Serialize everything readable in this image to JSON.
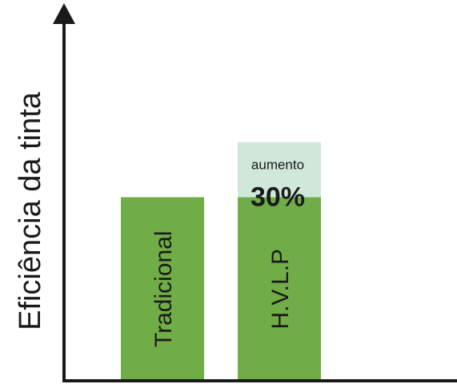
{
  "chart_data": {
    "type": "bar",
    "ylabel": "Eficiência da tinta",
    "xlabel": "",
    "categories": [
      "Tradicional",
      "H.V.L.P"
    ],
    "values": [
      100,
      100
    ],
    "increase": {
      "category": "H.V.L.P",
      "value": 30,
      "label_small": "aumento",
      "label_big": "30%"
    },
    "ylim": [
      0,
      190
    ],
    "grid": false,
    "legend": "none",
    "colors": {
      "bar": "#70ad47",
      "increase": "#cfe8d9",
      "axis": "#1a1a1a",
      "text": "#1a1a1a"
    }
  }
}
